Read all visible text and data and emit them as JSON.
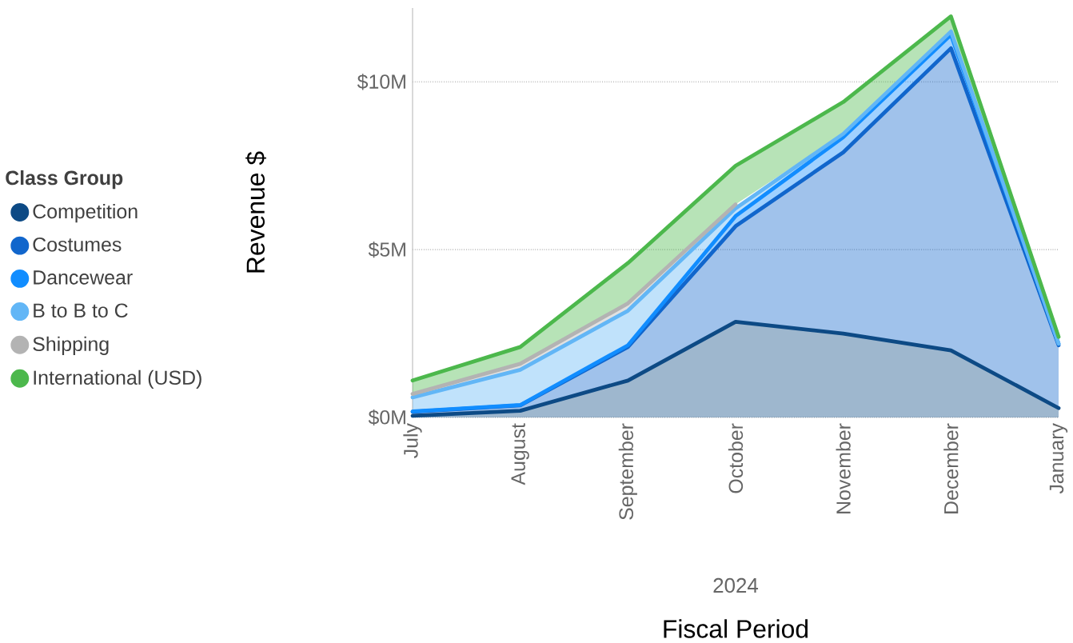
{
  "chart_data": {
    "type": "area",
    "stacked": true,
    "categories": [
      "July",
      "August",
      "September",
      "October",
      "November",
      "December",
      "January"
    ],
    "series": [
      {
        "name": "Competition",
        "color": "#0d4a85",
        "values": [
          0.05,
          0.2,
          1.1,
          2.85,
          2.5,
          2.0,
          0.28
        ]
      },
      {
        "name": "Costumes",
        "color": "#1166cc",
        "values": [
          0.12,
          0.16,
          1.0,
          2.85,
          5.4,
          9.0,
          1.87
        ]
      },
      {
        "name": "Dancewear",
        "color": "#118dff",
        "values": [
          0.01,
          0.01,
          0.05,
          0.3,
          0.45,
          0.4,
          0.05
        ]
      },
      {
        "name": "B to B to C",
        "color": "#62b6f6",
        "values": [
          0.42,
          1.05,
          1.03,
          0.23,
          0.1,
          0.1,
          0.0
        ]
      },
      {
        "name": "Shipping",
        "color": "#b3b3b3",
        "values": [
          0.1,
          0.18,
          0.22,
          0.12,
          null,
          null,
          null
        ]
      },
      {
        "name": "International (USD)",
        "color": "#4cb84c",
        "values": [
          0.4,
          0.5,
          1.2,
          1.15,
          0.95,
          0.45,
          0.2
        ]
      }
    ],
    "ylim": [
      0,
      12.2
    ],
    "yticks": [
      {
        "value": 0,
        "label": "$0M"
      },
      {
        "value": 5,
        "label": "$5M"
      },
      {
        "value": 10,
        "label": "$10M"
      }
    ],
    "grid": "y",
    "legend": "left",
    "legend_title": "Class Group",
    "xlabel": "Fiscal Period",
    "ylabel": "Revenue $",
    "annotations": [
      "2024"
    ]
  }
}
